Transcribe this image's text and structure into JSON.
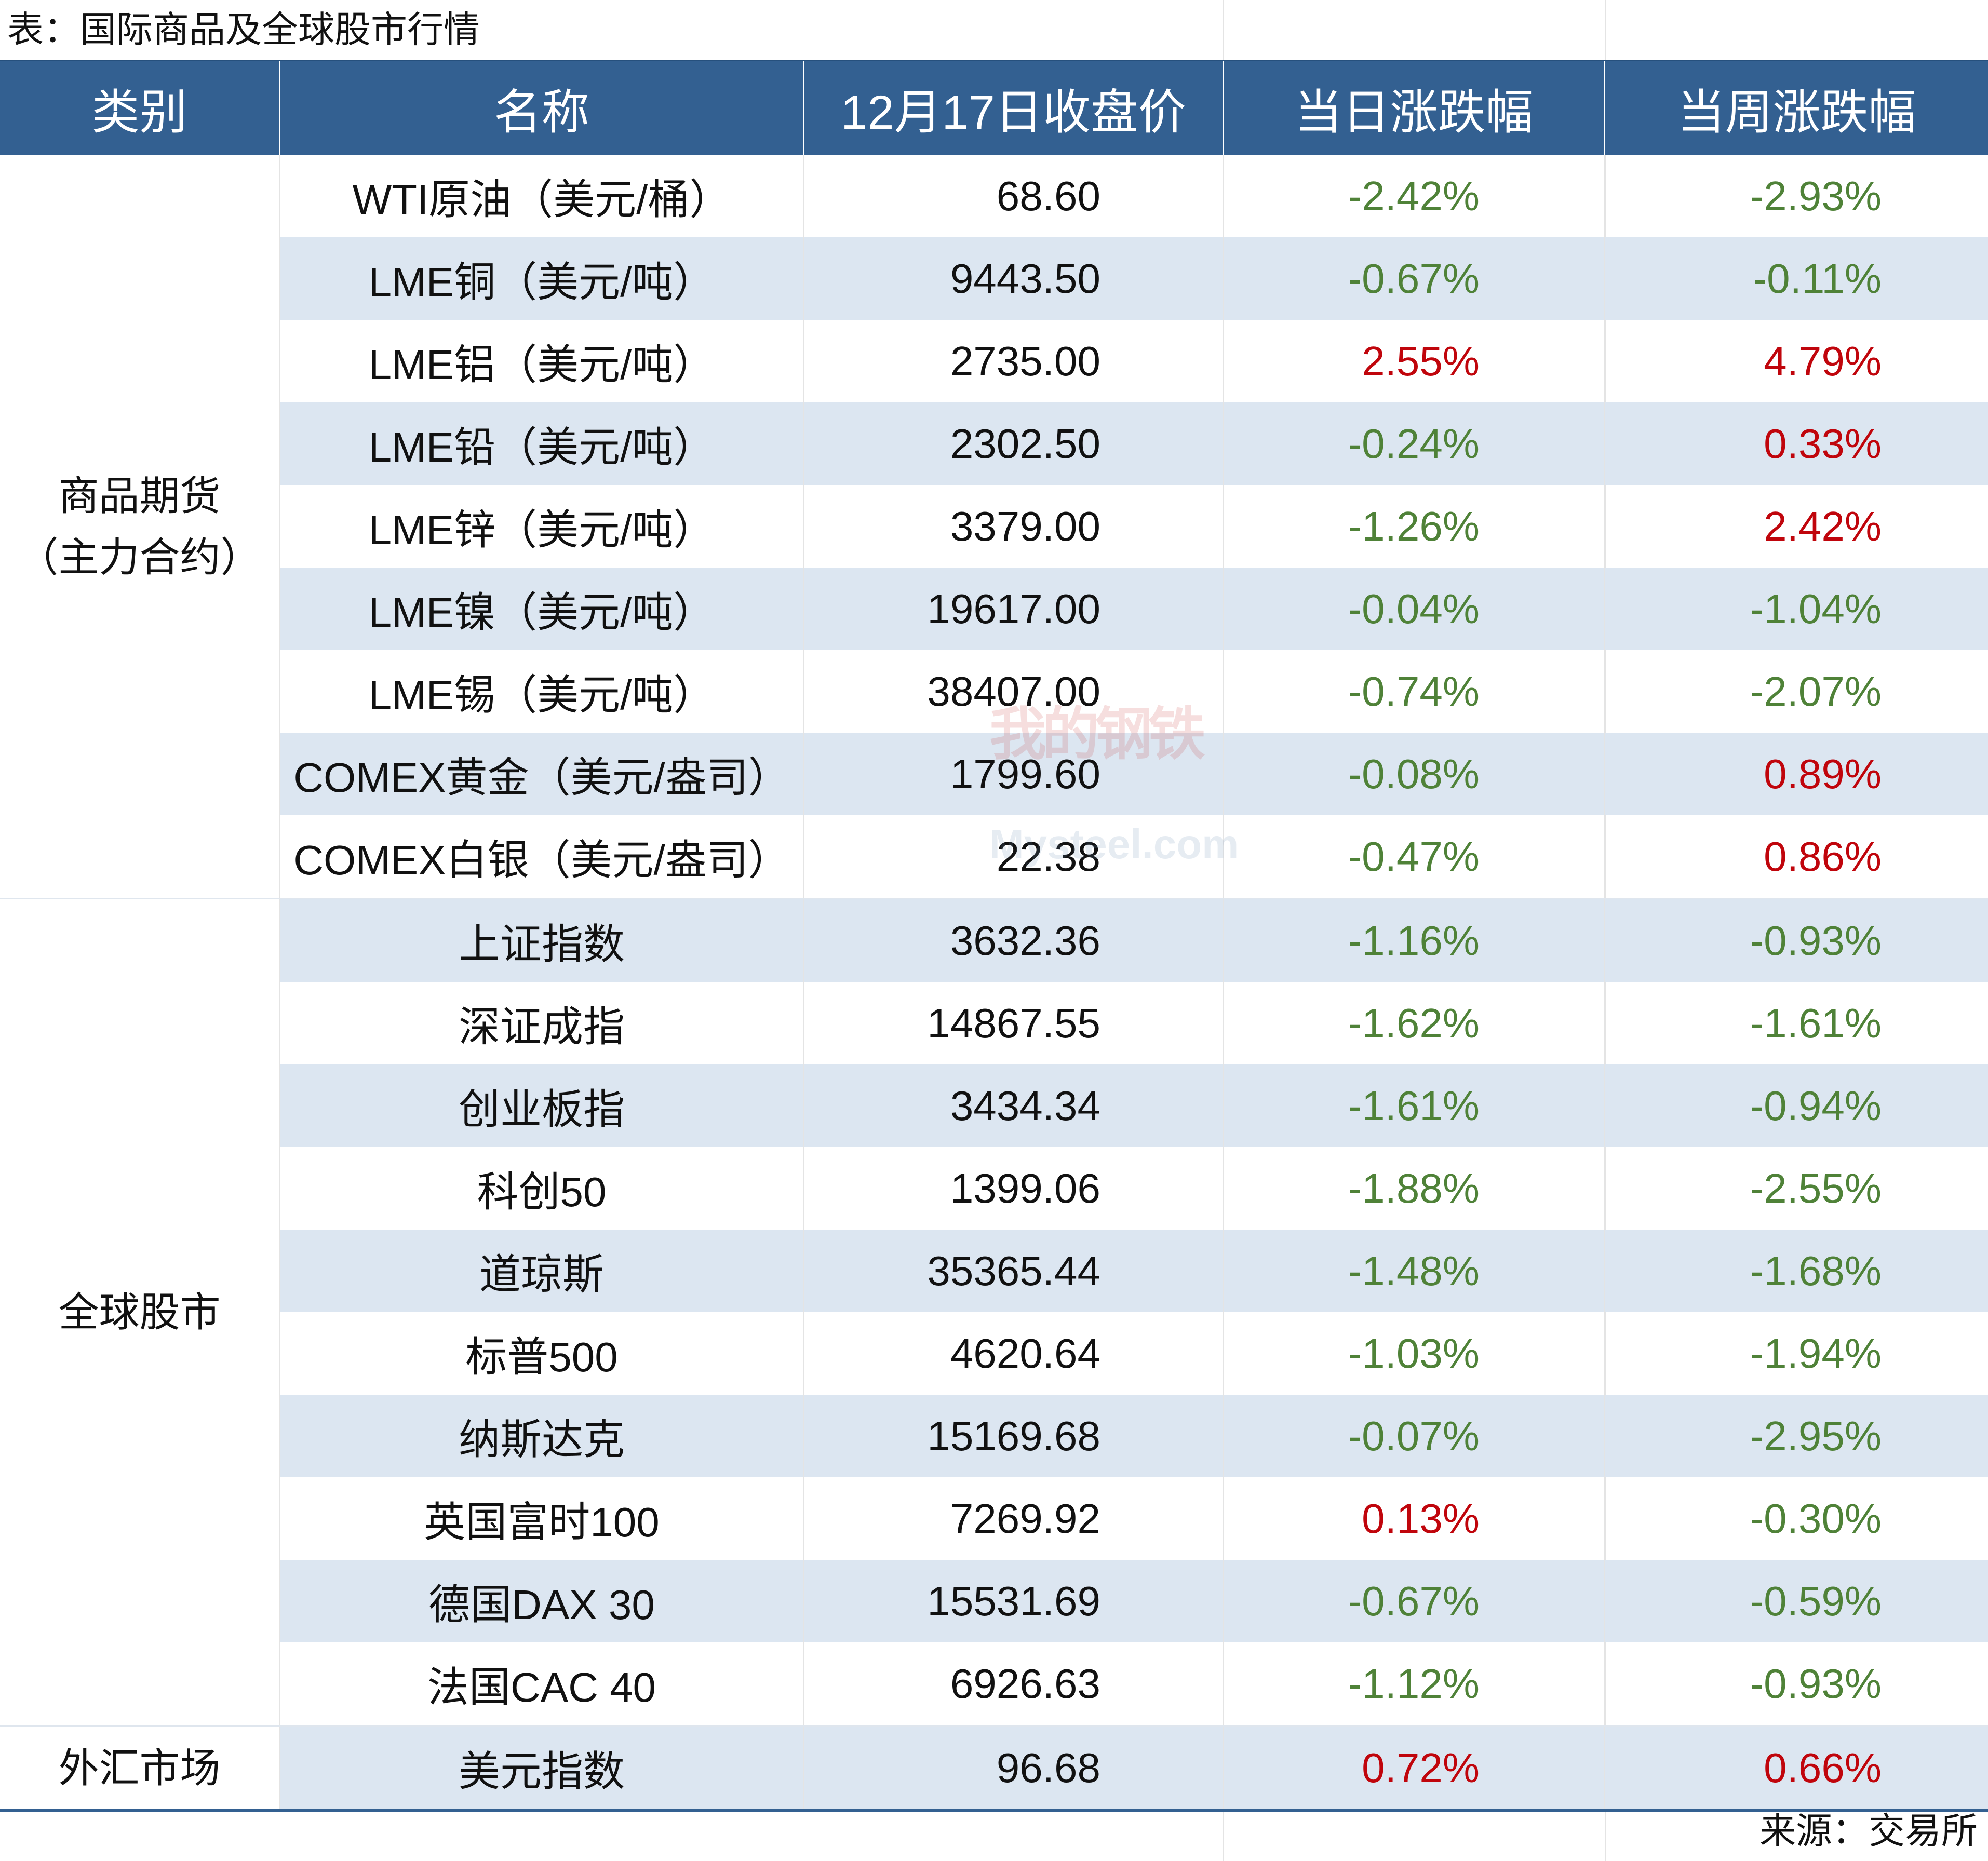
{
  "title": "表：国际商品及全球股市行情",
  "header": {
    "category": "类别",
    "name": "名称",
    "close": "12月17日收盘价",
    "day_change": "当日涨跌幅",
    "week_change": "当周涨跌幅"
  },
  "groups": {
    "commodities_line1": "商品期货",
    "commodities_line2": "（主力合约）",
    "stocks": "全球股市",
    "fx": "外汇市场"
  },
  "rows": [
    {
      "name": "WTI原油（美元/桶）",
      "close": "68.60",
      "day": "-2.42%",
      "week": "-2.93%"
    },
    {
      "name": "LME铜（美元/吨）",
      "close": "9443.50",
      "day": "-0.67%",
      "week": "-0.11%"
    },
    {
      "name": "LME铝（美元/吨）",
      "close": "2735.00",
      "day": "2.55%",
      "week": "4.79%"
    },
    {
      "name": "LME铅（美元/吨）",
      "close": "2302.50",
      "day": "-0.24%",
      "week": "0.33%"
    },
    {
      "name": "LME锌（美元/吨）",
      "close": "3379.00",
      "day": "-1.26%",
      "week": "2.42%"
    },
    {
      "name": "LME镍（美元/吨）",
      "close": "19617.00",
      "day": "-0.04%",
      "week": "-1.04%"
    },
    {
      "name": "LME锡（美元/吨）",
      "close": "38407.00",
      "day": "-0.74%",
      "week": "-2.07%"
    },
    {
      "name": "COMEX黄金（美元/盎司）",
      "close": "1799.60",
      "day": "-0.08%",
      "week": "0.89%"
    },
    {
      "name": "COMEX白银（美元/盎司）",
      "close": "22.38",
      "day": "-0.47%",
      "week": "0.86%"
    },
    {
      "name": "上证指数",
      "close": "3632.36",
      "day": "-1.16%",
      "week": "-0.93%"
    },
    {
      "name": "深证成指",
      "close": "14867.55",
      "day": "-1.62%",
      "week": "-1.61%"
    },
    {
      "name": "创业板指",
      "close": "3434.34",
      "day": "-1.61%",
      "week": "-0.94%"
    },
    {
      "name": "科创50",
      "close": "1399.06",
      "day": "-1.88%",
      "week": "-2.55%"
    },
    {
      "name": "道琼斯",
      "close": "35365.44",
      "day": "-1.48%",
      "week": "-1.68%"
    },
    {
      "name": "标普500",
      "close": "4620.64",
      "day": "-1.03%",
      "week": "-1.94%"
    },
    {
      "name": "纳斯达克",
      "close": "15169.68",
      "day": "-0.07%",
      "week": "-2.95%"
    },
    {
      "name": "英国富时100",
      "close": "7269.92",
      "day": "0.13%",
      "week": "-0.30%"
    },
    {
      "name": "德国DAX 30",
      "close": "15531.69",
      "day": "-0.67%",
      "week": "-0.59%"
    },
    {
      "name": "法国CAC 40",
      "close": "6926.63",
      "day": "-1.12%",
      "week": "-0.93%"
    },
    {
      "name": "美元指数",
      "close": "96.68",
      "day": "0.72%",
      "week": "0.66%"
    }
  ],
  "source": "来源：交易所",
  "watermark": {
    "text": "我的钢铁",
    "sub": "Mysteel.com"
  },
  "colors": {
    "header_bg": "#336091",
    "band_bg": "#dce6f1",
    "negative": "#4f8238",
    "positive": "#c0050c"
  }
}
